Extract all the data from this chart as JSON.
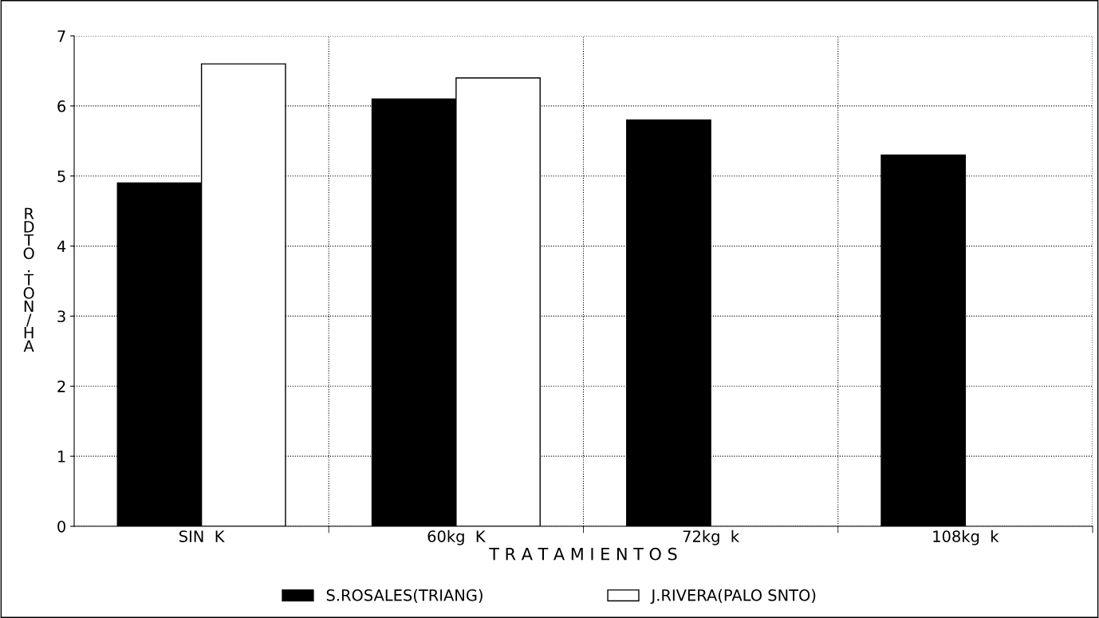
{
  "chart_data": {
    "type": "bar",
    "xlabel": "T R A T A M I E N T O S",
    "ylabel": "RDTO.TON/HA",
    "categories": [
      "SIN  K",
      "60kg  K",
      "72kg  k",
      "108kg  k"
    ],
    "series": [
      {
        "name": "S.ROSALES(TRIANG)",
        "color": "#000000",
        "values": [
          4.9,
          6.1,
          5.8,
          5.3
        ]
      },
      {
        "name": "J.RIVERA(PALO SNTO)",
        "color": "#ffffff",
        "values": [
          6.6,
          6.4,
          null,
          null
        ]
      }
    ],
    "ylim": [
      0,
      7
    ],
    "yticks": [
      0,
      1,
      2,
      3,
      4,
      5,
      6,
      7
    ],
    "grid": true,
    "legend": "bottom"
  }
}
